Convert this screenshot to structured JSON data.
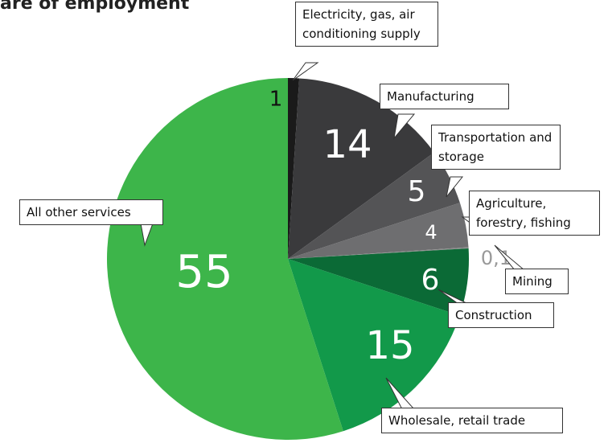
{
  "chart_data": {
    "type": "pie",
    "title": "are of employment",
    "categories": [
      "Electricity, gas, air conditioning supply",
      "Manufacturing",
      "Transportation and storage",
      "Agriculture, forestry, fishing",
      "Mining",
      "Construction",
      "Wholesale, retail trade",
      "All other services"
    ],
    "values": [
      1,
      14,
      5,
      4,
      0.1,
      6,
      15,
      55
    ],
    "value_labels": [
      "1",
      "14",
      "5",
      "4",
      "0,1",
      "6",
      "15",
      "55"
    ],
    "colors": [
      "#1a1a1a",
      "#3a3a3c",
      "#545456",
      "#6e6e70",
      "#8c8c8c",
      "#0b6a36",
      "#12994a",
      "#3db54a"
    ]
  }
}
